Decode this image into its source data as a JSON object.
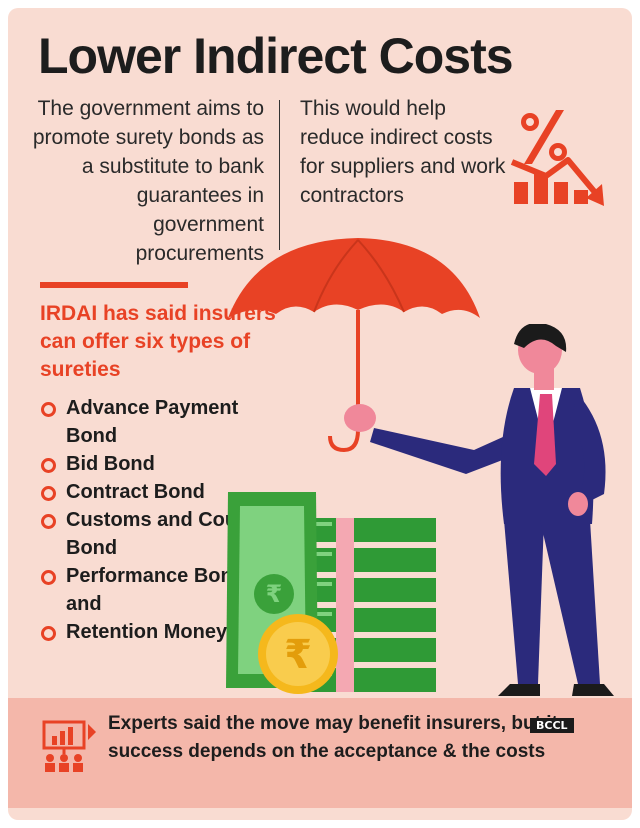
{
  "title": "Lower Indirect Costs",
  "intro_text": "The government aims to promote surety bonds as a substitute to bank guarantees in government procurements",
  "help_text": "This would help reduce indirect costs for suppliers and work contractors",
  "irdai_heading": "IRDAI has said insurers can offer six types of sureties",
  "sureties": [
    "Advance Payment Bond",
    "Bid Bond",
    "Contract Bond",
    "Customs and Court Bond",
    "Performance Bond and",
    "Retention Money"
  ],
  "footer_text": "Experts said the move may benefit insurers, but its success depends on the acceptance & the costs",
  "watermark": "BCCL",
  "icons": {
    "percent_down": "percent-down-chart-icon",
    "meeting": "meeting-presentation-icon",
    "rupee": "rupee-symbol"
  },
  "colors": {
    "background": "#f9dcd2",
    "accent_red": "#e84225",
    "footer_band": "#f4b7aa",
    "money_green": "#3aa13a",
    "coin_gold": "#f5b81c",
    "suit_navy": "#2b2a7c"
  }
}
